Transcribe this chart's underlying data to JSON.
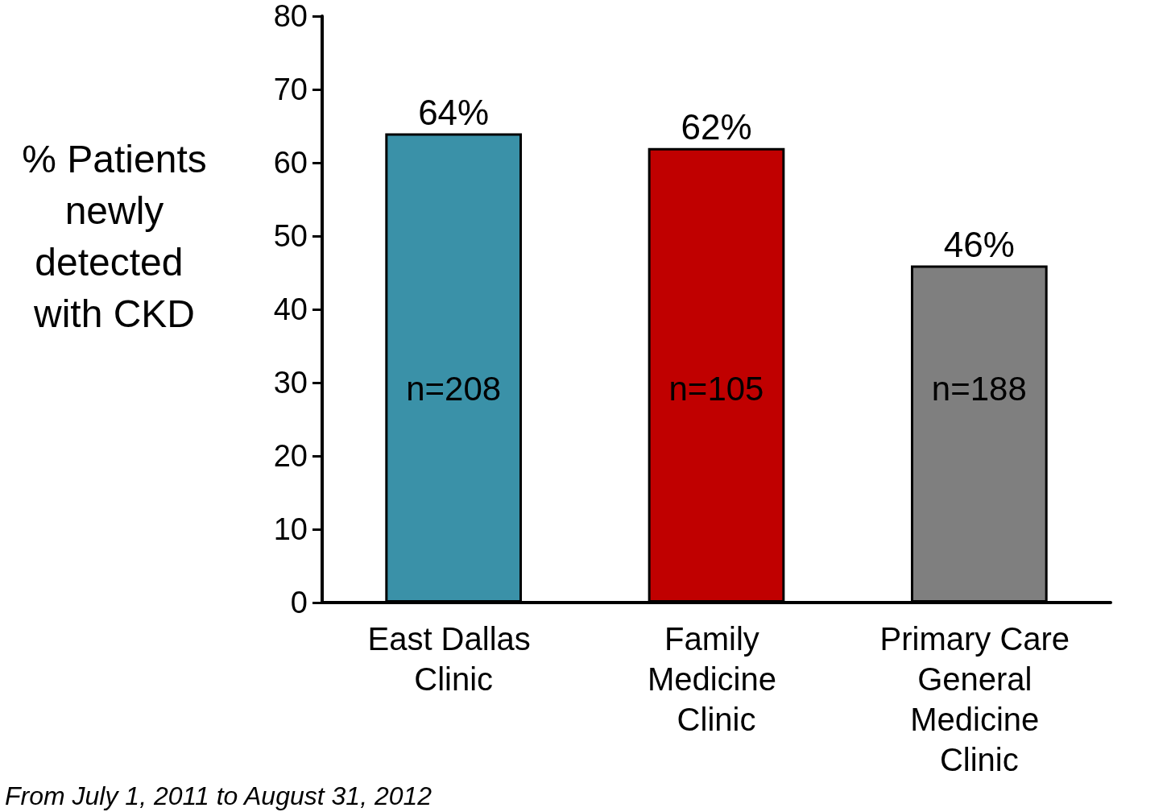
{
  "chart_data": {
    "type": "bar",
    "ylabel": "% Patients newly detected with CKD",
    "categories": [
      "East Dallas Clinic",
      "Family Medicine Clinic",
      "Primary Care General Medicine Clinic"
    ],
    "values": [
      64,
      62,
      46
    ],
    "colors": [
      "#3a91a8",
      "#c00000",
      "#7f7f7f"
    ],
    "value_labels": [
      "64%",
      "62%",
      "46%"
    ],
    "ylim": [
      0,
      80
    ],
    "yticks": [
      0,
      10,
      20,
      30,
      40,
      50,
      60,
      70,
      80
    ],
    "annotations": [
      "n=208",
      "n=105",
      "n=188",
      "From July 1, 2011 to August 31, 2012"
    ]
  }
}
